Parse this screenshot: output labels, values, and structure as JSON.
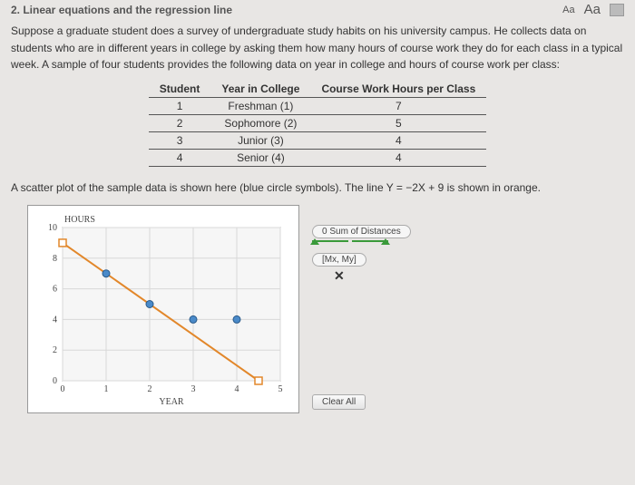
{
  "header": {
    "section_title": "2. Linear equations and the regression line",
    "font_dec": "Aa",
    "font_inc": "Aa"
  },
  "intro": "Suppose a graduate student does a survey of undergraduate study habits on his university campus. He collects data on students who are in different years in college by asking them how many hours of course work they do for each class in a typical week. A sample of four students provides the following data on year in college and hours of course work per class:",
  "table": {
    "columns": [
      "Student",
      "Year in College",
      "Course Work Hours per Class"
    ],
    "rows": [
      [
        "1",
        "Freshman (1)",
        "7"
      ],
      [
        "2",
        "Sophomore (2)",
        "5"
      ],
      [
        "3",
        "Junior (3)",
        "4"
      ],
      [
        "4",
        "Senior (4)",
        "4"
      ]
    ]
  },
  "desc": "A scatter plot of the sample data is shown here (blue circle symbols). The line Y = −2X + 9 is shown in orange.",
  "chart": {
    "type": "scatter",
    "x_label": "YEAR",
    "y_label": "HOURS",
    "xlim": [
      0,
      5
    ],
    "ylim": [
      0,
      10
    ],
    "xticks": [
      0,
      1,
      2,
      3,
      4,
      5
    ],
    "yticks": [
      0,
      2,
      4,
      6,
      8,
      10
    ],
    "points": [
      {
        "x": 1,
        "y": 7
      },
      {
        "x": 2,
        "y": 5
      },
      {
        "x": 3,
        "y": 4
      },
      {
        "x": 4,
        "y": 4
      }
    ],
    "point_color": "#4a8ac9",
    "line": {
      "x1": 0,
      "y1": 9,
      "x2": 4.5,
      "y2": 0
    },
    "line_color": "#e2872a",
    "endpoint_marker_color": "#e2872a",
    "grid_color": "#d8d8d8",
    "background_color": "#f6f6f6"
  },
  "controls": {
    "sum_label": "0 Sum of Distances",
    "mx_my_label": "[Mx, My]",
    "clear_label": "Clear All"
  }
}
